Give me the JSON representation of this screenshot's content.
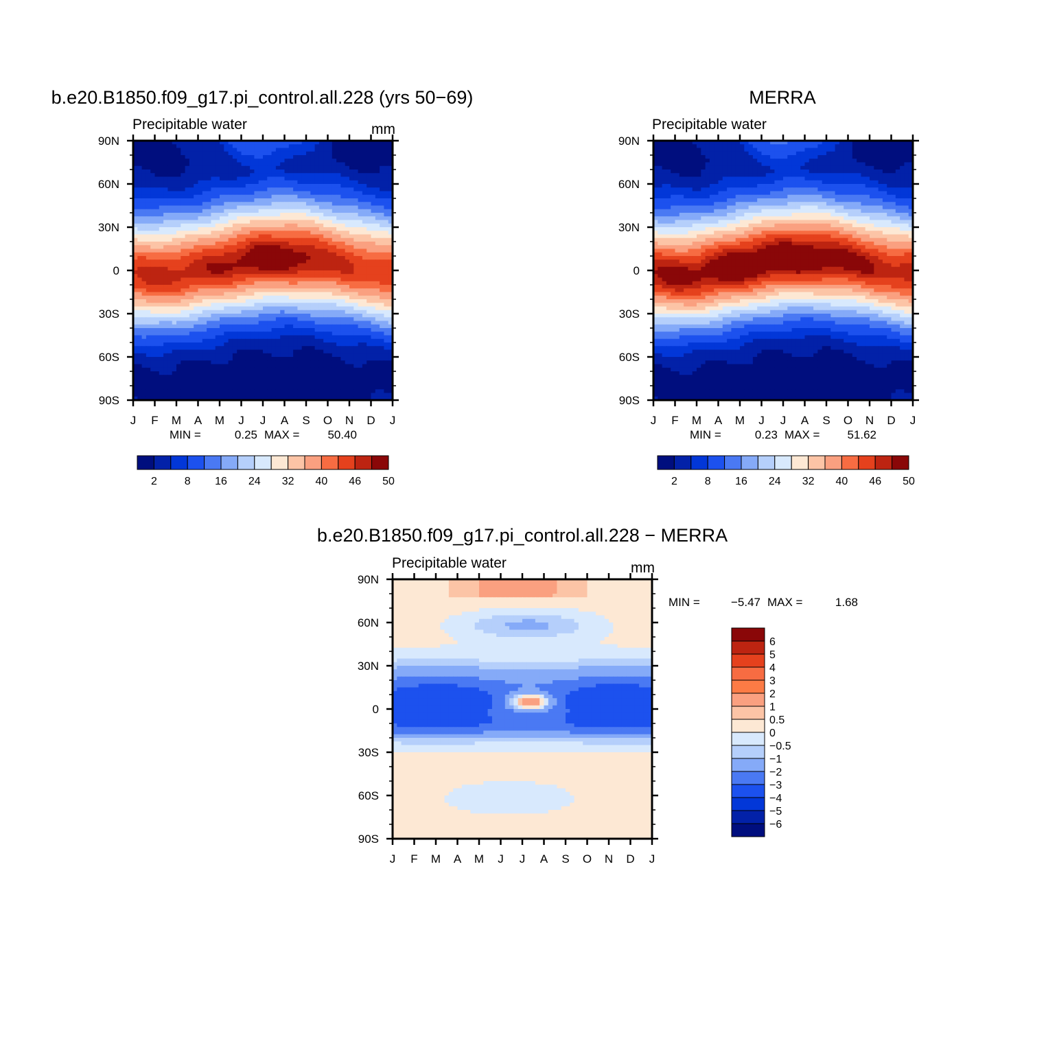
{
  "units": "mm",
  "months": [
    "J",
    "F",
    "M",
    "A",
    "M",
    "J",
    "J",
    "A",
    "S",
    "O",
    "N",
    "D",
    "J"
  ],
  "lat_ticks": [
    "90N",
    "60N",
    "30N",
    "0",
    "30S",
    "60S",
    "90S"
  ],
  "panels": [
    {
      "key": "model",
      "title": "b.e20.B1850.f09_g17.pi_control.all.228 (yrs 50−69)",
      "left_label": "Precipitable water",
      "right_label": "mm",
      "stats": {
        "min_label": "MIN =",
        "min": "0.25",
        "max_label": "MAX =",
        "max": "50.40"
      }
    },
    {
      "key": "obs",
      "title": "MERRA",
      "left_label": "Precipitable water",
      "right_label": "",
      "stats": {
        "min_label": "MIN =",
        "min": "0.23",
        "max_label": "MAX =",
        "max": "51.62"
      }
    },
    {
      "key": "diff",
      "title": "b.e20.B1850.f09_g17.pi_control.all.228 − MERRA",
      "left_label": "Precipitable water",
      "right_label": "mm",
      "stats": {
        "min_label": "MIN =",
        "min": "−5.47",
        "max_label": "MAX =",
        "max": "1.68"
      }
    }
  ],
  "colorbar_abs": {
    "colors": [
      "#000e7e",
      "#0221a8",
      "#0237d8",
      "#1c51ee",
      "#4a79f3",
      "#85aaf8",
      "#b5cffb",
      "#d8e9fd",
      "#fde8d4",
      "#fcc4a6",
      "#faa080",
      "#f76c42",
      "#e5411d",
      "#bd2411",
      "#8a0708"
    ],
    "labels": [
      "2",
      "8",
      "16",
      "24",
      "32",
      "40",
      "46",
      "50"
    ]
  },
  "colorbar_diff": {
    "colors": [
      "#8a0708",
      "#bd2411",
      "#e5411d",
      "#f76c42",
      "#fc7b45",
      "#faa080",
      "#fcc4a6",
      "#fde8d4",
      "#d8e9fd",
      "#b5cffb",
      "#85aaf8",
      "#4a79f3",
      "#1c51ee",
      "#0237d8",
      "#0221a8",
      "#000e7e"
    ],
    "labels": [
      "6",
      "5",
      "4",
      "3",
      "2",
      "1",
      "0.5",
      "0",
      "−0.5",
      "−1",
      "−2",
      "−3",
      "−4",
      "−5",
      "−6"
    ]
  },
  "chart_data": [
    {
      "type": "heatmap",
      "title": "b.e20.B1850.f09_g17.pi_control.all.228 (yrs 50−69)",
      "subtitle": "Precipitable water",
      "units": "mm",
      "x": [
        "J",
        "F",
        "M",
        "A",
        "M",
        "J",
        "J",
        "A",
        "S",
        "O",
        "N",
        "D",
        "J"
      ],
      "y": [
        "90N",
        "60N",
        "30N",
        "0",
        "30S",
        "60S",
        "90S"
      ],
      "xlim": [
        "J",
        "J"
      ],
      "ylim": [
        -90,
        90
      ],
      "min": 0.25,
      "max": 50.4,
      "levels": [
        2,
        5,
        8,
        12,
        16,
        20,
        24,
        28,
        32,
        36,
        40,
        43,
        46,
        48,
        50
      ],
      "features": {
        "max_lat_path": [
          -3,
          -4,
          -3,
          0,
          3,
          6,
          8,
          9,
          8,
          6,
          3,
          0,
          -3
        ],
        "max_value_path": [
          46,
          47,
          47,
          47,
          48,
          49,
          50,
          50,
          49,
          47,
          46,
          45,
          46
        ],
        "north_pole_value": [
          1,
          1,
          1.5,
          3,
          6,
          11,
          13,
          11,
          7,
          3,
          1.5,
          1,
          1
        ],
        "south_pole_value": [
          2,
          1.5,
          1,
          0.6,
          0.4,
          0.3,
          0.3,
          0.3,
          0.3,
          0.5,
          1,
          1.6,
          2
        ]
      }
    },
    {
      "type": "heatmap",
      "title": "MERRA",
      "subtitle": "Precipitable water",
      "units": "",
      "x": [
        "J",
        "F",
        "M",
        "A",
        "M",
        "J",
        "J",
        "A",
        "S",
        "O",
        "N",
        "D",
        "J"
      ],
      "y": [
        "90N",
        "60N",
        "30N",
        "0",
        "30S",
        "60S",
        "90S"
      ],
      "xlim": [
        "J",
        "J"
      ],
      "ylim": [
        -90,
        90
      ],
      "min": 0.23,
      "max": 51.62,
      "levels": [
        2,
        5,
        8,
        12,
        16,
        20,
        24,
        28,
        32,
        36,
        40,
        43,
        46,
        48,
        50
      ],
      "features": {
        "max_lat_path": [
          -3,
          -4,
          -3,
          0,
          3,
          6,
          8,
          9,
          8,
          6,
          3,
          0,
          -3
        ],
        "max_value_path": [
          48,
          49,
          49,
          50,
          51,
          51,
          51,
          51,
          50,
          49,
          48,
          47,
          48
        ],
        "north_pole_value": [
          1,
          1,
          1.5,
          3,
          6,
          11,
          14,
          12,
          7,
          3,
          1.5,
          1,
          1
        ],
        "south_pole_value": [
          2,
          1.5,
          1,
          0.6,
          0.4,
          0.3,
          0.3,
          0.3,
          0.3,
          0.5,
          1,
          1.6,
          2
        ]
      }
    },
    {
      "type": "heatmap",
      "title": "b.e20.B1850.f09_g17.pi_control.all.228 − MERRA",
      "subtitle": "Precipitable water",
      "units": "mm",
      "x": [
        "J",
        "F",
        "M",
        "A",
        "M",
        "J",
        "J",
        "A",
        "S",
        "O",
        "N",
        "D",
        "J"
      ],
      "y": [
        "90N",
        "60N",
        "30N",
        "0",
        "30S",
        "60S",
        "90S"
      ],
      "xlim": [
        "J",
        "J"
      ],
      "ylim": [
        -90,
        90
      ],
      "min": -5.47,
      "max": 1.68,
      "levels": [
        -6,
        -5,
        -4,
        -3,
        -2,
        -1,
        -0.5,
        0,
        0.5,
        1,
        2,
        3,
        4,
        5,
        6
      ],
      "features": {
        "north_pole_positive": 1.5,
        "midlat_south_value": 0.3,
        "equatorial_negative": -4.5
      }
    }
  ]
}
